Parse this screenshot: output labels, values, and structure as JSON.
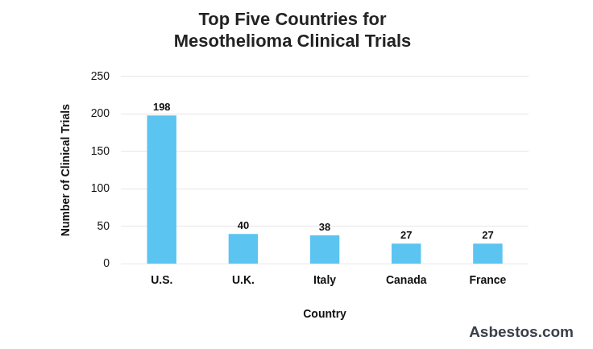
{
  "chart_data": {
    "type": "bar",
    "title": [
      "Top Five Countries for",
      "Mesothelioma Clinical Trials"
    ],
    "x_label": "Country",
    "y_label": "Number of Clinical Trials",
    "categories": [
      "U.S.",
      "U.K.",
      "Italy",
      "Canada",
      "France"
    ],
    "values": [
      198,
      40,
      38,
      27,
      27
    ],
    "color": "#5bc4f1",
    "ylim": [
      0,
      250
    ],
    "yticks": [
      0,
      50,
      100,
      150,
      200,
      250
    ],
    "grid": true,
    "data_labels": true,
    "annotation": "Asbestos.com"
  }
}
